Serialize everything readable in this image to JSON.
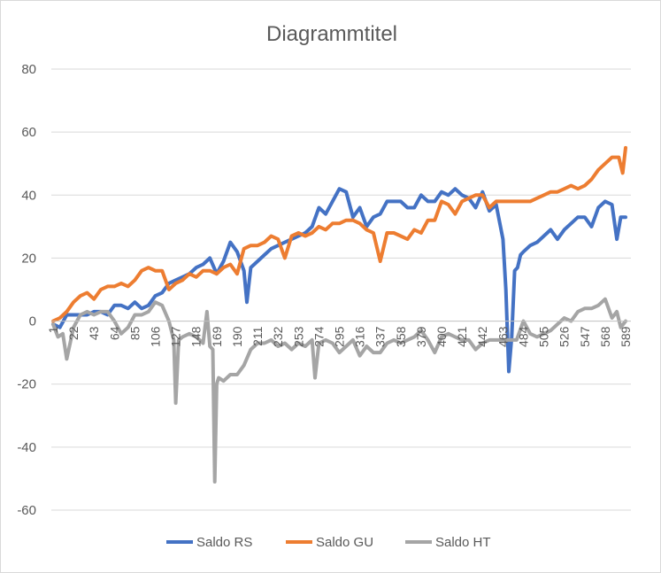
{
  "chart_data": {
    "type": "line",
    "title": "Diagrammtitel",
    "xlabel": "",
    "ylabel": "",
    "ylim": [
      -60,
      80
    ],
    "yticks": [
      80,
      60,
      40,
      20,
      0,
      -20,
      -40,
      -60
    ],
    "xlim": [
      1,
      589
    ],
    "xticks": [
      1,
      22,
      43,
      64,
      85,
      106,
      127,
      148,
      169,
      190,
      211,
      232,
      253,
      274,
      295,
      316,
      337,
      358,
      379,
      400,
      421,
      442,
      463,
      484,
      505,
      526,
      547,
      568,
      589
    ],
    "grid": "horizontal",
    "legend": "bottom",
    "series": [
      {
        "name": "Saldo RS",
        "color": "#4472C4",
        "x": [
          1,
          8,
          15,
          22,
          29,
          36,
          43,
          50,
          57,
          64,
          71,
          78,
          85,
          92,
          99,
          106,
          113,
          120,
          127,
          134,
          141,
          148,
          155,
          162,
          169,
          176,
          183,
          190,
          197,
          200,
          204,
          211,
          218,
          225,
          232,
          239,
          246,
          253,
          260,
          267,
          274,
          281,
          288,
          295,
          302,
          309,
          316,
          323,
          330,
          337,
          344,
          351,
          358,
          365,
          372,
          379,
          386,
          393,
          400,
          407,
          414,
          421,
          428,
          435,
          442,
          449,
          456,
          463,
          466,
          469,
          472,
          475,
          478,
          481,
          484,
          491,
          498,
          505,
          512,
          519,
          526,
          533,
          540,
          547,
          554,
          561,
          568,
          575,
          580,
          584,
          589
        ],
        "values": [
          -1,
          -2,
          2,
          2,
          2,
          2,
          3,
          3,
          2,
          5,
          5,
          4,
          6,
          4,
          5,
          8,
          9,
          12,
          13,
          14,
          15,
          17,
          18,
          20,
          15,
          19,
          25,
          22,
          16,
          6,
          17,
          19,
          21,
          23,
          24,
          25,
          26,
          27,
          28,
          30,
          36,
          34,
          38,
          42,
          41,
          33,
          36,
          30,
          33,
          34,
          38,
          38,
          38,
          36,
          36,
          40,
          38,
          38,
          41,
          40,
          42,
          40,
          39,
          36,
          41,
          35,
          37,
          26,
          10,
          -16,
          -5,
          16,
          17,
          21,
          22,
          24,
          25,
          27,
          29,
          26,
          29,
          31,
          33,
          33,
          30,
          36,
          38,
          37,
          26,
          33,
          33
        ]
      },
      {
        "name": "Saldo GU",
        "color": "#ED7D31",
        "x": [
          1,
          8,
          15,
          22,
          29,
          36,
          43,
          50,
          57,
          64,
          71,
          78,
          85,
          92,
          99,
          106,
          113,
          120,
          127,
          134,
          141,
          148,
          155,
          162,
          169,
          176,
          183,
          190,
          197,
          204,
          211,
          218,
          225,
          232,
          239,
          246,
          253,
          260,
          267,
          274,
          281,
          288,
          295,
          302,
          309,
          316,
          323,
          330,
          337,
          344,
          351,
          358,
          365,
          372,
          379,
          386,
          393,
          400,
          407,
          414,
          421,
          428,
          435,
          442,
          449,
          456,
          463,
          470,
          477,
          484,
          491,
          498,
          505,
          512,
          519,
          526,
          533,
          540,
          547,
          554,
          561,
          568,
          575,
          582,
          586,
          589
        ],
        "values": [
          0,
          1,
          3,
          6,
          8,
          9,
          7,
          10,
          11,
          11,
          12,
          11,
          13,
          16,
          17,
          16,
          16,
          10,
          12,
          13,
          15,
          14,
          16,
          16,
          15,
          17,
          18,
          15,
          23,
          24,
          24,
          25,
          27,
          26,
          20,
          27,
          28,
          27,
          28,
          30,
          29,
          31,
          31,
          32,
          32,
          31,
          29,
          28,
          19,
          28,
          28,
          27,
          26,
          29,
          28,
          32,
          32,
          38,
          37,
          34,
          38,
          39,
          40,
          40,
          36,
          38,
          38,
          38,
          38,
          38,
          38,
          39,
          40,
          41,
          41,
          42,
          43,
          42,
          43,
          45,
          48,
          50,
          52,
          52,
          47,
          55
        ]
      },
      {
        "name": "Saldo HT",
        "color": "#A5A5A5",
        "x": [
          1,
          6,
          11,
          15,
          22,
          29,
          36,
          43,
          50,
          57,
          64,
          71,
          78,
          85,
          92,
          99,
          106,
          113,
          120,
          125,
          127,
          130,
          134,
          141,
          148,
          155,
          159,
          162,
          165,
          167,
          169,
          171,
          176,
          183,
          190,
          197,
          204,
          211,
          218,
          225,
          232,
          239,
          246,
          253,
          260,
          267,
          270,
          274,
          281,
          288,
          295,
          302,
          309,
          316,
          323,
          330,
          337,
          344,
          351,
          358,
          365,
          372,
          379,
          386,
          393,
          400,
          407,
          414,
          421,
          428,
          435,
          442,
          449,
          456,
          463,
          470,
          477,
          484,
          491,
          498,
          505,
          512,
          519,
          526,
          533,
          540,
          547,
          554,
          561,
          568,
          575,
          580,
          584,
          589
        ],
        "values": [
          -1,
          -5,
          -4,
          -12,
          -2,
          2,
          3,
          2,
          3,
          3,
          0,
          -4,
          -2,
          2,
          2,
          3,
          6,
          5,
          0,
          -6,
          -26,
          -6,
          -5,
          -4,
          -5,
          -7,
          3,
          -8,
          -9,
          -51,
          -20,
          -18,
          -19,
          -17,
          -17,
          -14,
          -9,
          -7,
          -7,
          -6,
          -8,
          -7,
          -9,
          -7,
          -8,
          -6,
          -18,
          -7,
          -6,
          -7,
          -10,
          -8,
          -6,
          -11,
          -8,
          -10,
          -10,
          -7,
          -6,
          -7,
          -6,
          -5,
          -3,
          -6,
          -10,
          -5,
          -4,
          -5,
          -6,
          -6,
          -9,
          -7,
          -6,
          -6,
          -6,
          -6,
          -6,
          0,
          -4,
          -5,
          -4,
          -3,
          -1,
          1,
          0,
          3,
          4,
          4,
          5,
          7,
          1,
          3,
          -2,
          0
        ]
      }
    ]
  }
}
